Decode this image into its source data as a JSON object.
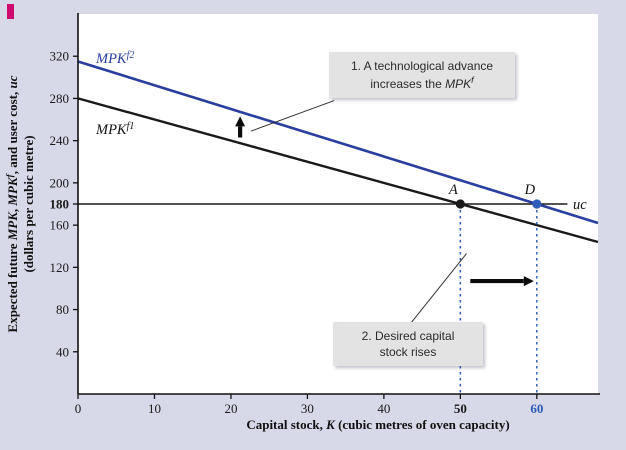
{
  "figure": {
    "bg_color": "#d8d9e8",
    "accent_navy": "#2a3f9d",
    "accent_blue": "#2e5cb8"
  },
  "labels": {
    "y_title_a": "Expected future ",
    "y_title_b": "MPK",
    "y_title_c": ", ",
    "y_title_d": "MPK",
    "y_title_e": "f",
    "y_title_f": ", and user cost, ",
    "y_title_g": "uc",
    "y_title_line2": "(dollars per cubic metre)",
    "x_title_a": "Capital stock, ",
    "x_title_b": "K",
    "x_title_c": " (cubic metres of oven capacity)",
    "mpk2_base": "MPK",
    "mpk2_sup": "f2",
    "mpk1_base": "MPK",
    "mpk1_sup": "f1",
    "uc": "uc"
  },
  "callouts": {
    "c1_line1": "1. A technological advance",
    "c1_line2a": "increases the ",
    "c1_line2b": "MPK",
    "c1_line2c": "f",
    "c2_line1": "2. Desired capital",
    "c2_line2": "stock rises"
  },
  "chart_data": {
    "type": "line",
    "title": "",
    "xlabel": "Capital stock, K (cubic metres of oven capacity)",
    "ylabel": "Expected future MPK, MPK^f, and user cost, uc (dollars per cubic metre)",
    "xlim": [
      0,
      68
    ],
    "ylim": [
      0,
      360
    ],
    "x_ticks": [
      0,
      10,
      20,
      30,
      40,
      50,
      60
    ],
    "y_ticks": [
      40,
      80,
      120,
      160,
      180,
      200,
      240,
      280,
      320
    ],
    "emphasis": {
      "x_bold": [
        50,
        60
      ],
      "x_blue": [
        60
      ],
      "y_bold": [
        180
      ]
    },
    "grid": false,
    "series": [
      {
        "name": "uc",
        "color": "#1a1a1a",
        "width": 1.6,
        "points": [
          [
            0,
            180
          ],
          [
            64,
            180
          ]
        ]
      },
      {
        "name": "MPKf1",
        "color": "#1a1a1a",
        "width": 2.4,
        "points": [
          [
            0,
            280
          ],
          [
            68,
            144
          ]
        ]
      },
      {
        "name": "MPKf2",
        "color": "#2a3f9d",
        "width": 2.6,
        "points": [
          [
            0,
            315
          ],
          [
            68,
            162
          ]
        ]
      }
    ],
    "points": [
      {
        "label": "A",
        "x": 50,
        "y": 180,
        "color": "#1a1a1a"
      },
      {
        "label": "D",
        "x": 60,
        "y": 180,
        "color": "#2e5cb8"
      }
    ],
    "dashed_verticals": [
      {
        "x": 50,
        "from": 180,
        "color": "#2e5cb8"
      },
      {
        "x": 60,
        "from": 180,
        "color": "#2e5cb8"
      }
    ],
    "arrows": [
      {
        "x1": 21.2,
        "y1": 243,
        "x2": 21.2,
        "y2": 263
      },
      {
        "x1": 51.3,
        "y1": 107,
        "x2": 59.6,
        "y2": 107
      }
    ],
    "connectors": [
      {
        "x1": 33.5,
        "y1": 278,
        "x2": 22.6,
        "y2": 249
      },
      {
        "x1": 43.4,
        "y1": 66,
        "x2": 50.8,
        "y2": 133
      }
    ]
  }
}
